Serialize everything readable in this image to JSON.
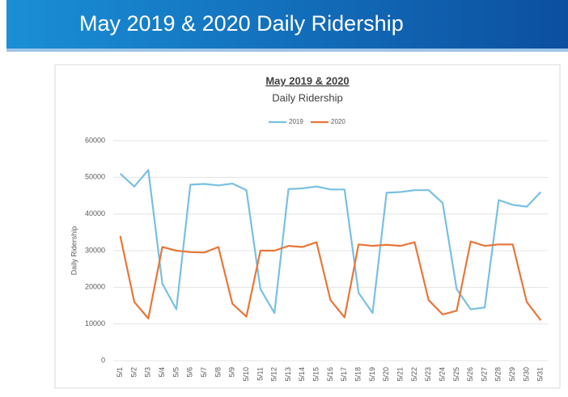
{
  "header": {
    "title": "May 2019 & 2020 Daily Ridership"
  },
  "chart_data": {
    "type": "line",
    "title": "May 2019 & 2020",
    "subtitle": "Daily Ridership",
    "y_label": "Daily Ridership",
    "categories": [
      "5/1",
      "5/2",
      "5/3",
      "5/4",
      "5/5",
      "5/6",
      "5/7",
      "5/8",
      "5/9",
      "5/10",
      "5/11",
      "5/12",
      "5/13",
      "5/14",
      "5/15",
      "5/16",
      "5/17",
      "5/18",
      "5/19",
      "5/20",
      "5/21",
      "5/22",
      "5/23",
      "5/24",
      "5/25",
      "5/26",
      "5/27",
      "5/28",
      "5/29",
      "5/30",
      "5/31"
    ],
    "series": [
      {
        "name": "2019",
        "color": "#79c0e2",
        "values": [
          51000,
          47500,
          52000,
          21000,
          14000,
          48000,
          48200,
          47800,
          48300,
          46500,
          19500,
          13000,
          46800,
          47000,
          47500,
          46700,
          46700,
          18500,
          13000,
          45800,
          46000,
          46500,
          46500,
          43000,
          19500,
          14000,
          14500,
          43800,
          42500,
          42000,
          46000
        ]
      },
      {
        "name": "2020",
        "color": "#e8763a",
        "values": [
          34000,
          16000,
          11500,
          31000,
          30000,
          29600,
          29500,
          31000,
          15500,
          12000,
          30000,
          30000,
          31300,
          31000,
          32300,
          16500,
          11800,
          31700,
          31300,
          31600,
          31300,
          32300,
          16500,
          12600,
          13600,
          32500,
          31300,
          31700,
          31700,
          16000,
          11000
        ]
      }
    ],
    "ylim": [
      0,
      60000
    ],
    "yticks": [
      0,
      10000,
      20000,
      30000,
      40000,
      50000,
      60000
    ],
    "grid": true,
    "legend": "top"
  }
}
